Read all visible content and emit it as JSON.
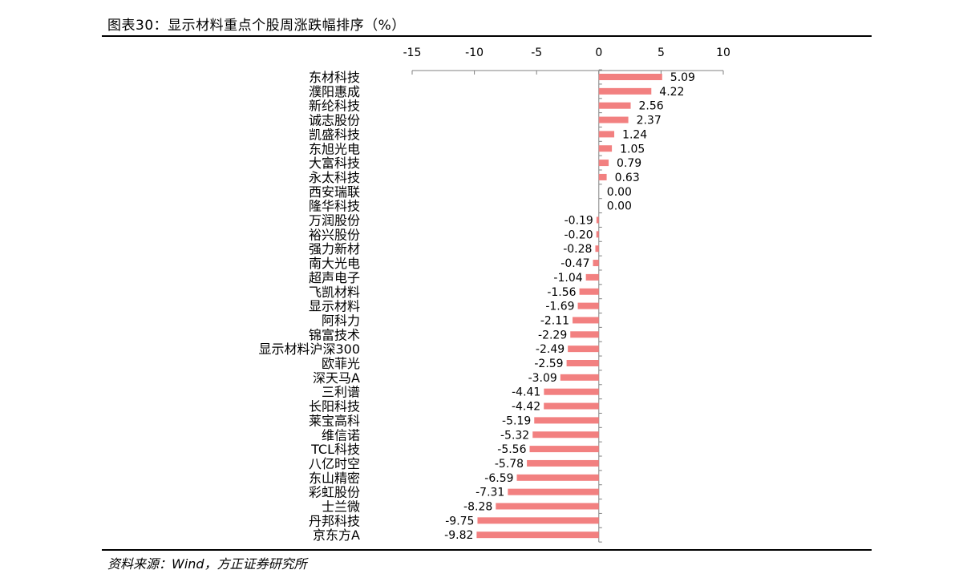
{
  "figure": {
    "title": "图表30：显示材料重点个股周涨跌幅排序（%）",
    "source": "资料来源：Wind，方正证券研究所"
  },
  "chart_data": {
    "type": "bar",
    "orientation": "horizontal",
    "title": "",
    "xlabel": "",
    "ylabel": "",
    "xlim": [
      -15,
      10
    ],
    "x_ticks": [
      "-15",
      "-10",
      "-5",
      "0",
      "5",
      "10"
    ],
    "x_axis_position": "top",
    "grid": false,
    "bar_color": "#F28080",
    "categories": [
      "东材科技",
      "濮阳惠成",
      "新纶科技",
      "诚志股份",
      "凯盛科技",
      "东旭光电",
      "大富科技",
      "永太科技",
      "西安瑞联",
      "隆华科技",
      "万润股份",
      "裕兴股份",
      "强力新材",
      "南大光电",
      "超声电子",
      "飞凯材料",
      "显示材料",
      "阿科力",
      "锦富技术",
      "显示材料沪深300",
      "欧菲光",
      "深天马A",
      "三利谱",
      "长阳科技",
      "莱宝高科",
      "维信诺",
      "TCL科技",
      "八亿时空",
      "东山精密",
      "彩虹股份",
      "士兰微",
      "丹邦科技",
      "京东方A"
    ],
    "values": [
      5.09,
      4.22,
      2.56,
      2.37,
      1.24,
      1.05,
      0.79,
      0.63,
      0.0,
      0.0,
      -0.19,
      -0.2,
      -0.28,
      -0.47,
      -1.04,
      -1.56,
      -1.69,
      -2.11,
      -2.29,
      -2.49,
      -2.59,
      -3.09,
      -4.41,
      -4.42,
      -5.19,
      -5.32,
      -5.56,
      -5.78,
      -6.59,
      -7.31,
      -8.28,
      -9.75,
      -9.82
    ],
    "value_labels": [
      "5.09",
      "4.22",
      "2.56",
      "2.37",
      "1.24",
      "1.05",
      "0.79",
      "0.63",
      "0.00",
      "0.00",
      "-0.19",
      "-0.20",
      "-0.28",
      "-0.47",
      "-1.04",
      "-1.56",
      "-1.69",
      "-2.11",
      "-2.29",
      "-2.49",
      "-2.59",
      "-3.09",
      "-4.41",
      "-4.42",
      "-5.19",
      "-5.32",
      "-5.56",
      "-5.78",
      "-6.59",
      "-7.31",
      "-8.28",
      "-9.75",
      "-9.82"
    ]
  }
}
